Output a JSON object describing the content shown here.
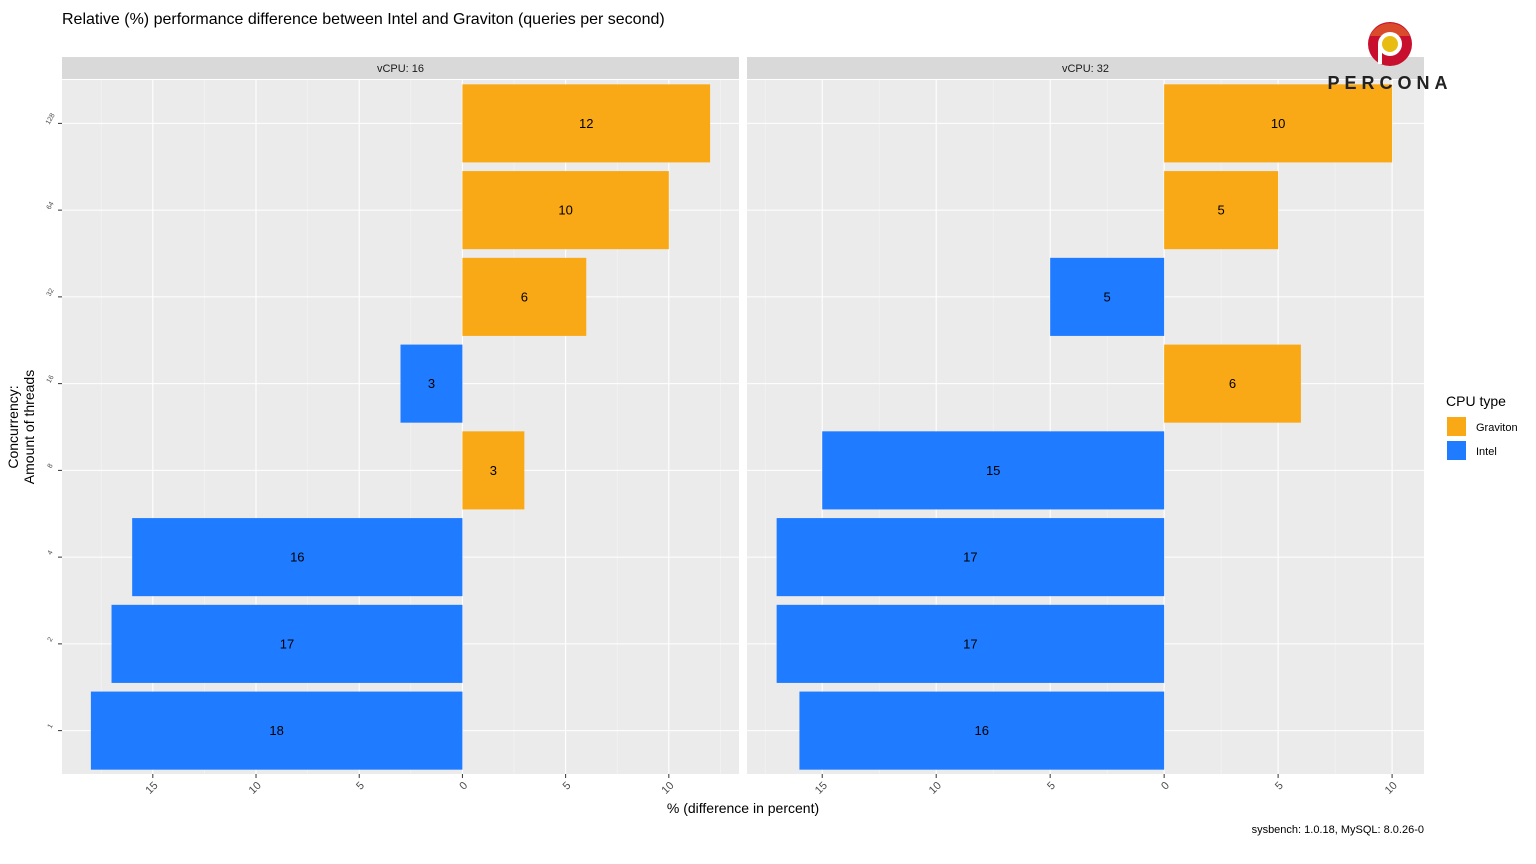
{
  "chart_data": {
    "type": "bar",
    "orientation": "horizontal",
    "title": "Relative (%) performance difference between Intel and Graviton (queries per second)",
    "xlabel": "% (difference in percent)",
    "ylabel": "Concurrency:\nAmount of threads",
    "caption": "sysbench: 1.0.18, MySQL: 8.0.26-0",
    "categories": [
      "1",
      "2",
      "4",
      "8",
      "16",
      "32",
      "64",
      "128"
    ],
    "legend": {
      "title": "CPU type",
      "position": "right",
      "entries": [
        {
          "name": "Graviton",
          "color": "#FAA916"
        },
        {
          "name": "Intel",
          "color": "#1F7BFF"
        }
      ]
    },
    "grid": true,
    "panels": [
      {
        "strip": "vCPU: 16",
        "xlim": [
          -19.4,
          13.4
        ],
        "xticks": [
          -15,
          -10,
          -5,
          0,
          5,
          10
        ],
        "xtick_labels": [
          "15",
          "10",
          "5",
          "0",
          "5",
          "10"
        ],
        "values": [
          -18,
          -17,
          -16,
          3,
          -3,
          6,
          10,
          12
        ],
        "series_by_bar": [
          "Intel",
          "Intel",
          "Intel",
          "Graviton",
          "Intel",
          "Graviton",
          "Graviton",
          "Graviton"
        ],
        "labels": [
          "18",
          "17",
          "16",
          "3",
          "3",
          "6",
          "10",
          "12"
        ]
      },
      {
        "strip": "vCPU: 32",
        "xlim": [
          -18.3,
          11.4
        ],
        "xticks": [
          -15,
          -10,
          -5,
          0,
          5,
          10
        ],
        "xtick_labels": [
          "15",
          "10",
          "5",
          "0",
          "5",
          "10"
        ],
        "values": [
          -16,
          -17,
          -17,
          -15,
          6,
          -5,
          5,
          10
        ],
        "series_by_bar": [
          "Intel",
          "Intel",
          "Intel",
          "Intel",
          "Graviton",
          "Intel",
          "Graviton",
          "Graviton"
        ],
        "labels": [
          "16",
          "17",
          "17",
          "15",
          "6",
          "5",
          "5",
          "10"
        ]
      }
    ]
  },
  "logo": {
    "text": "PERCONA"
  }
}
